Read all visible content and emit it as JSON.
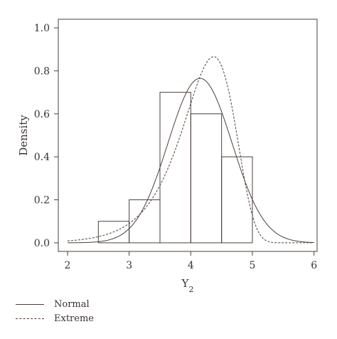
{
  "chart_data": {
    "type": "histogram",
    "xlabel": "Y",
    "xlabel_sub": "2",
    "ylabel": "Density",
    "xlim": [
      1.85,
      6.05
    ],
    "ylim": [
      -0.04,
      1.04
    ],
    "x_ticks": [
      2,
      3,
      4,
      5,
      6
    ],
    "y_ticks": [
      0.0,
      0.2,
      0.4,
      0.6,
      0.8,
      1.0
    ],
    "y_tick_labels": [
      "0.0",
      "0.2",
      "0.4",
      "0.6",
      "0.8",
      "1.0"
    ],
    "bins": [
      {
        "x0": 2.5,
        "x1": 3.0,
        "density": 0.1
      },
      {
        "x0": 3.0,
        "x1": 3.5,
        "density": 0.2
      },
      {
        "x0": 3.5,
        "x1": 4.0,
        "density": 0.7
      },
      {
        "x0": 4.0,
        "x1": 4.5,
        "density": 0.6
      },
      {
        "x0": 4.5,
        "x1": 5.0,
        "density": 0.4
      }
    ],
    "series": [
      {
        "name": "Normal",
        "style": "solid",
        "distribution": "normal",
        "mean": 4.15,
        "sd": 0.52,
        "peak": 0.765
      },
      {
        "name": "Extreme",
        "style": "dashed",
        "distribution": "gumbel-max-reversed",
        "mode": 4.37,
        "scale": 0.425,
        "peak": 0.866
      }
    ],
    "legend": {
      "placement": "bottom-left",
      "entries": [
        "Normal",
        "Extreme"
      ]
    },
    "grid": false,
    "line_color": "#4a403c"
  }
}
